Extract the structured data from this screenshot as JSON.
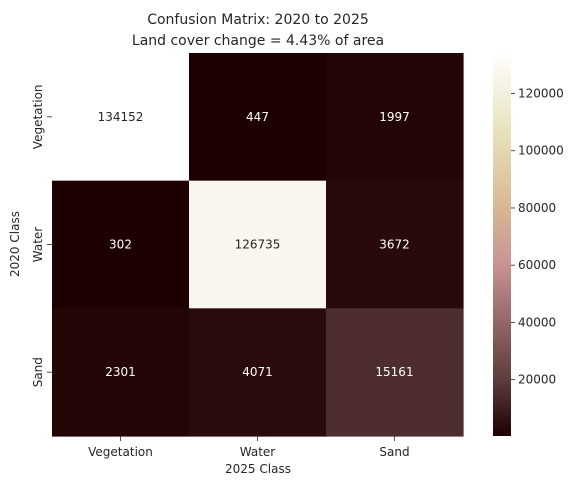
{
  "chart_data": {
    "type": "heatmap",
    "title_line1": "Confusion Matrix: 2020 to 2025",
    "title_line2": "Land cover change = 4.43% of area",
    "xlabel": "2025 Class",
    "ylabel": "2020 Class",
    "x_categories": [
      "Vegetation",
      "Water",
      "Sand"
    ],
    "y_categories": [
      "Vegetation",
      "Water",
      "Sand"
    ],
    "values": [
      [
        134152,
        447,
        1997
      ],
      [
        302,
        126735,
        3672
      ],
      [
        2301,
        4071,
        15161
      ]
    ],
    "color_range": [
      302,
      134152
    ],
    "colormap": "pink",
    "colorbar_ticks": [
      "20000",
      "40000",
      "60000",
      "80000",
      "100000",
      "120000"
    ],
    "colorbar_tick_values": [
      20000,
      40000,
      60000,
      80000,
      100000,
      120000
    ]
  }
}
